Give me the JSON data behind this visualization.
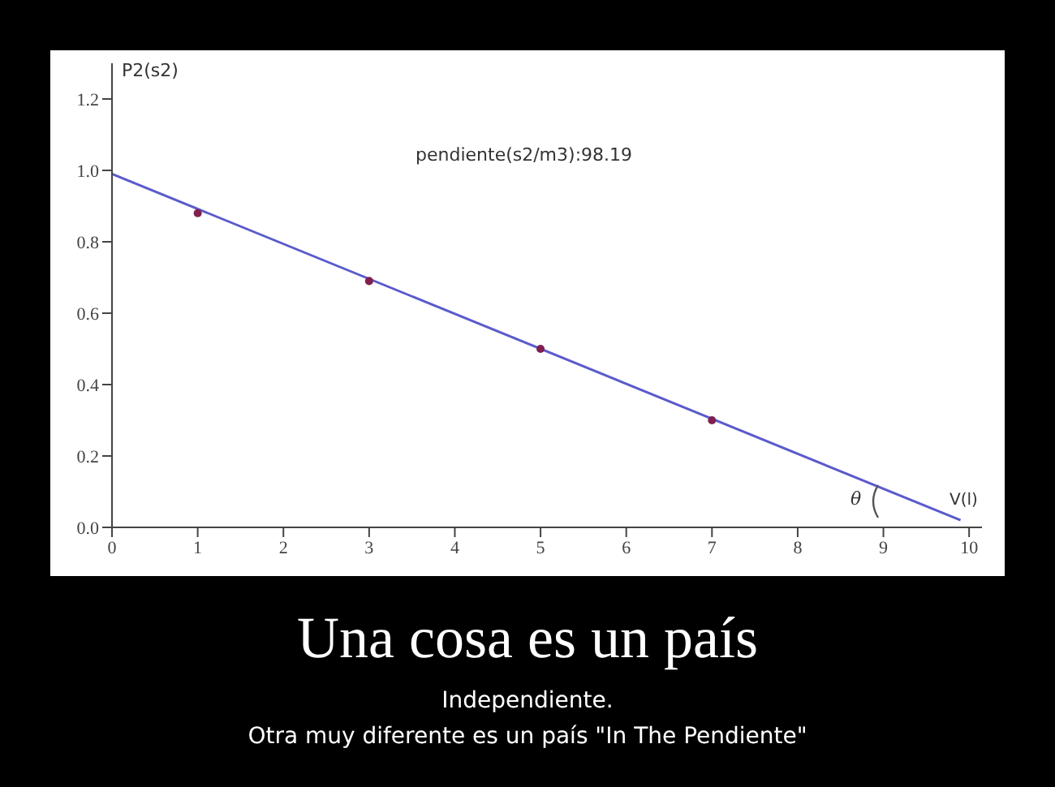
{
  "chart_data": {
    "type": "scatter",
    "title": "Una cosa es un país",
    "subtitle": "Independiente.",
    "xlabel": "V(l)",
    "ylabel": "P2(s2)",
    "annotations": [
      "pendiente(s2/m3):98.19",
      "θ",
      "Otra muy diferente es un país \"In The Pendiente\""
    ],
    "x": [
      1,
      3,
      5,
      7
    ],
    "series": [
      {
        "color": "#802050",
        "marker": "circle",
        "values": [
          0.88,
          0.69,
          0.5,
          0.3
        ]
      },
      {
        "type": "line",
        "color": "#5a5acc",
        "marker": "none",
        "x": [
          0,
          9.9
        ],
        "values": [
          0.99,
          0.02
        ]
      }
    ],
    "grid": false,
    "legend": false,
    "xlim": [
      0,
      10.15
    ],
    "xticks": [
      0,
      1,
      2,
      3,
      4,
      5,
      6,
      7,
      8,
      9,
      10
    ],
    "ylim": [
      0,
      1.3
    ],
    "yticks": [
      {
        "value": 0,
        "label": "0.0"
      },
      {
        "value": 0.2,
        "label": "0.2"
      },
      {
        "value": 0.4,
        "label": "0.4"
      },
      {
        "value": 0.6,
        "label": "0.6"
      },
      {
        "value": 0.8,
        "label": "0.8"
      },
      {
        "value": 1,
        "label": "1.0"
      },
      {
        "value": 1.2,
        "label": "1.2"
      }
    ]
  }
}
